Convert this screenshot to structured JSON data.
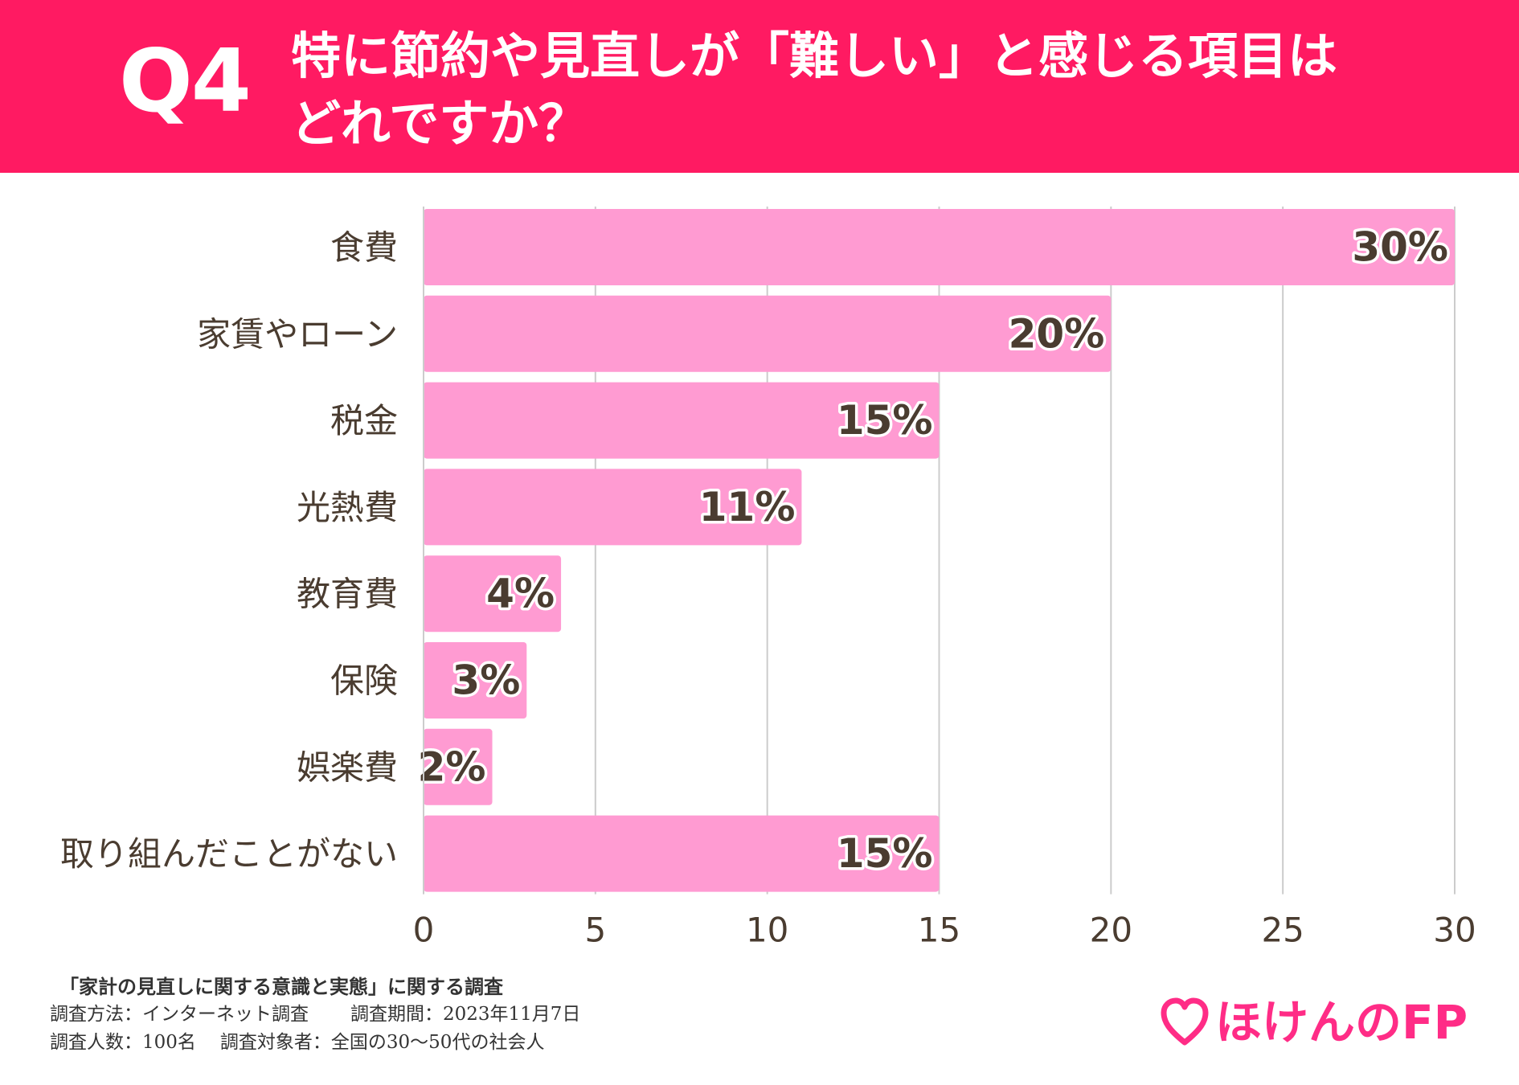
{
  "header": {
    "question_number": "Q4",
    "question_line1": "特に節約や見直しが「難しい」と感じる項目は",
    "question_line2": "どれですか？"
  },
  "colors": {
    "header_bg": "#ff1a62",
    "bar_fill": "#ff9bd2",
    "label_text": "#4a3c30",
    "grid": "#cccccc",
    "logo": "#ff2c86"
  },
  "chart_data": {
    "type": "bar",
    "orientation": "horizontal",
    "categories": [
      "食費",
      "家賃やローン",
      "税金",
      "光熱費",
      "教育費",
      "保険",
      "娯楽費",
      "取り組んだことがない"
    ],
    "values": [
      30,
      20,
      15,
      11,
      4,
      3,
      2,
      15
    ],
    "value_labels": [
      "30%",
      "20%",
      "15%",
      "11%",
      "4%",
      "3%",
      "2%",
      "15%"
    ],
    "xlim": [
      0,
      30
    ],
    "xticks": [
      0,
      5,
      10,
      15,
      20,
      25,
      30
    ],
    "grid": true,
    "title": "",
    "xlabel": "",
    "ylabel": ""
  },
  "footer": {
    "survey_title": "「家計の見直しに関する意識と実態」に関する調査",
    "method": "調査方法：インターネット調査",
    "period": "調査期間：2023年11月7日",
    "count": "調査人数：100名",
    "target": "調査対象者：全国の30〜50代の社会人"
  },
  "logo": {
    "text": "ほけんのFP",
    "icon": "heart-icon"
  }
}
